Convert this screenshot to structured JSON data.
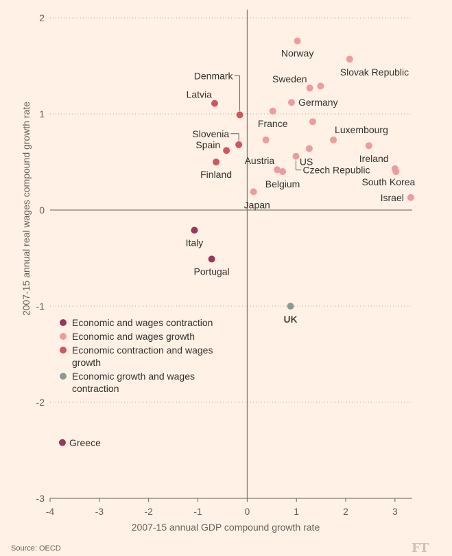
{
  "source": "Source: OECD",
  "logo_text": "FT",
  "chart_data": {
    "type": "scatter",
    "xlabel": "2007-15 annual GDP compound growth rate",
    "ylabel": "2007-15 annual real wages compound growth rate",
    "xlim": [
      -4,
      3.35
    ],
    "ylim": [
      -3,
      2
    ],
    "x_ticks": [
      -4,
      -3,
      -2,
      -1,
      0,
      1,
      2,
      3
    ],
    "y_ticks": [
      -3,
      -2,
      -1,
      0,
      1,
      2
    ],
    "grid": "horizontal dotted",
    "legend_position": "lower-left",
    "categories": [
      {
        "key": "contraction",
        "name": "Economic and wages contraction",
        "color": "#99375a"
      },
      {
        "key": "growth",
        "name": "Economic and wages growth",
        "color": "#ee9b9f"
      },
      {
        "key": "mixed",
        "name": "Economic contraction and wages growth",
        "color": "#d0555d"
      },
      {
        "key": "growth_contraction",
        "name": "Economic growth and wages contraction",
        "color": "#8a9b95"
      }
    ],
    "points": [
      {
        "label": "Norway",
        "x": 1.02,
        "y": 1.76,
        "cat": "growth",
        "lpos": "below"
      },
      {
        "label": "Slovak Republic",
        "x": 2.08,
        "y": 1.57,
        "cat": "growth",
        "lpos": "below-right"
      },
      {
        "label": "Sweden",
        "x": 1.27,
        "y": 1.27,
        "cat": "growth",
        "lpos": "above-left"
      },
      {
        "label": "",
        "x": 1.49,
        "y": 1.29,
        "cat": "growth",
        "lpos": "none"
      },
      {
        "label": "Germany",
        "x": 0.9,
        "y": 1.12,
        "cat": "growth",
        "lpos": "right"
      },
      {
        "label": "France",
        "x": 0.52,
        "y": 1.03,
        "cat": "growth",
        "lpos": "below"
      },
      {
        "label": "",
        "x": 1.33,
        "y": 0.92,
        "cat": "growth",
        "lpos": "none"
      },
      {
        "label": "Luxembourg",
        "x": 1.75,
        "y": 0.73,
        "cat": "growth",
        "lpos": "above-right"
      },
      {
        "label": "",
        "x": 0.38,
        "y": 0.73,
        "cat": "growth",
        "lpos": "none"
      },
      {
        "label": "Ireland",
        "x": 2.47,
        "y": 0.67,
        "cat": "growth",
        "lpos": "below-right"
      },
      {
        "label": "US",
        "x": 1.26,
        "y": 0.64,
        "cat": "growth",
        "lpos": "below-right"
      },
      {
        "label": "Czech Republic",
        "x": 0.99,
        "y": 0.56,
        "cat": "growth",
        "lpos": "leader"
      },
      {
        "label": "Austria",
        "x": 0.61,
        "y": 0.42,
        "cat": "growth",
        "lpos": "above-left"
      },
      {
        "label": "Belgium",
        "x": 0.72,
        "y": 0.4,
        "cat": "growth",
        "lpos": "below"
      },
      {
        "label": "",
        "x": 3.0,
        "y": 0.43,
        "cat": "growth",
        "lpos": "none"
      },
      {
        "label": "South Korea",
        "x": 3.02,
        "y": 0.4,
        "cat": "growth",
        "lpos": "below-left"
      },
      {
        "label": "Israel",
        "x": 3.32,
        "y": 0.13,
        "cat": "growth",
        "lpos": "left"
      },
      {
        "label": "Japan",
        "x": 0.13,
        "y": 0.19,
        "cat": "growth",
        "lpos": "below-right"
      },
      {
        "label": "Latvia",
        "x": -0.66,
        "y": 1.11,
        "cat": "mixed",
        "lpos": "above-left"
      },
      {
        "label": "Denmark",
        "x": -0.15,
        "y": 0.99,
        "cat": "mixed",
        "lpos": "leader-top"
      },
      {
        "label": "Slovenia",
        "x": -0.17,
        "y": 0.68,
        "cat": "mixed",
        "lpos": "leader-left"
      },
      {
        "label": "Spain",
        "x": -0.42,
        "y": 0.62,
        "cat": "mixed",
        "lpos": "left-up"
      },
      {
        "label": "Finland",
        "x": -0.63,
        "y": 0.5,
        "cat": "mixed",
        "lpos": "below"
      },
      {
        "label": "Italy",
        "x": -1.07,
        "y": -0.21,
        "cat": "contraction",
        "lpos": "below"
      },
      {
        "label": "Portugal",
        "x": -0.72,
        "y": -0.51,
        "cat": "contraction",
        "lpos": "below"
      },
      {
        "label": "Greece",
        "x": -3.75,
        "y": -2.42,
        "cat": "contraction",
        "lpos": "right"
      },
      {
        "label": "UK",
        "x": 0.88,
        "y": -1.0,
        "cat": "growth_contraction",
        "lpos": "below-bold"
      }
    ]
  }
}
